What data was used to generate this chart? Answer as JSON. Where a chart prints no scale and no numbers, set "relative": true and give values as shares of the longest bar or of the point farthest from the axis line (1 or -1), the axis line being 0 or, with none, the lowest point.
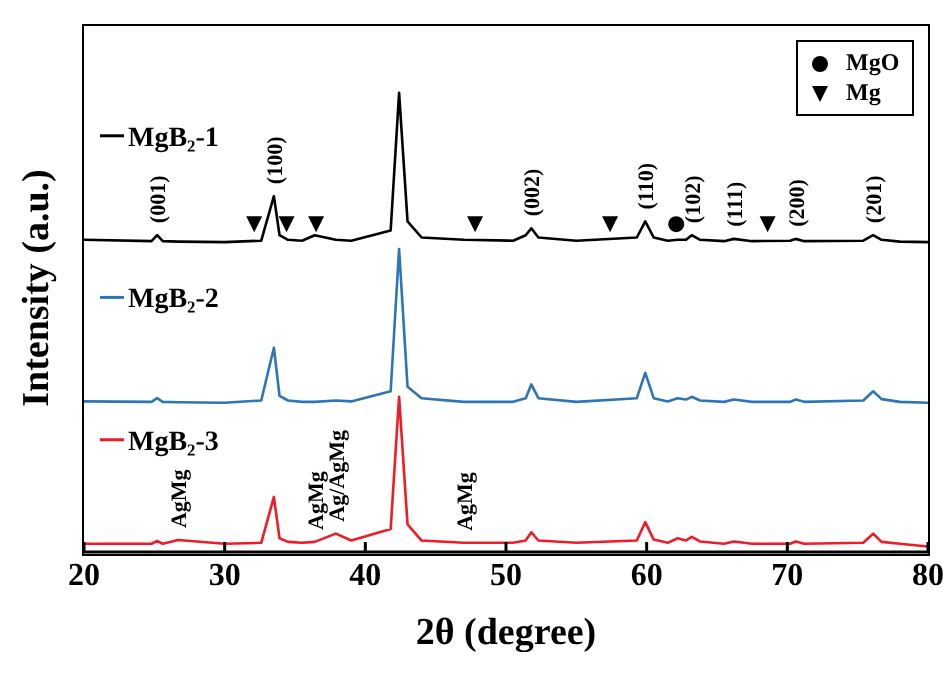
{
  "chart_data": {
    "type": "line",
    "relative": true,
    "xlabel": "2θ (degree)",
    "ylabel": "Intensity (a.u.)",
    "xlim": [
      20,
      80
    ],
    "xticks": [
      20,
      30,
      40,
      50,
      60,
      70,
      80
    ],
    "legend": "top right",
    "x": [
      20,
      24.8,
      25.2,
      25.6,
      26.7,
      30,
      32.6,
      33.5,
      33.9,
      34.5,
      35.5,
      36.4,
      37.9,
      39,
      41.8,
      42.4,
      43,
      44,
      47,
      50.5,
      51.4,
      51.8,
      52.3,
      55,
      59.3,
      59.9,
      60.5,
      61.5,
      62.2,
      62.8,
      63.2,
      63.8,
      65.5,
      66.2,
      67.5,
      70.2,
      70.6,
      71.2,
      75.4,
      76.1,
      76.7,
      78,
      80
    ],
    "series": [
      {
        "name": "MgB₂-1",
        "color": "#000000",
        "values": [
          0.68,
          0.677,
          0.69,
          0.677,
          0.676,
          0.675,
          0.678,
          0.775,
          0.69,
          0.68,
          0.678,
          0.69,
          0.68,
          0.678,
          0.7,
          1,
          0.72,
          0.685,
          0.68,
          0.678,
          0.69,
          0.705,
          0.685,
          0.678,
          0.685,
          0.72,
          0.685,
          0.678,
          0.68,
          0.68,
          0.69,
          0.68,
          0.677,
          0.682,
          0.677,
          0.678,
          0.682,
          0.677,
          0.678,
          0.69,
          0.68,
          0.676,
          0.675
        ]
      },
      {
        "name": "MgB₂-2",
        "color": "#2e75b6",
        "values": [
          0.328,
          0.327,
          0.335,
          0.327,
          0.326,
          0.325,
          0.33,
          0.445,
          0.34,
          0.33,
          0.327,
          0.327,
          0.33,
          0.328,
          0.35,
          0.66,
          0.36,
          0.335,
          0.327,
          0.327,
          0.335,
          0.365,
          0.335,
          0.327,
          0.335,
          0.39,
          0.335,
          0.328,
          0.335,
          0.332,
          0.338,
          0.33,
          0.327,
          0.332,
          0.327,
          0.327,
          0.332,
          0.327,
          0.33,
          0.35,
          0.333,
          0.327,
          0.325
        ]
      },
      {
        "name": "MgB₂-3",
        "color": "#ee1c25",
        "values": [
          0.018,
          0.018,
          0.024,
          0.018,
          0.026,
          0.018,
          0.02,
          0.12,
          0.03,
          0.022,
          0.02,
          0.022,
          0.04,
          0.025,
          0.05,
          0.338,
          0.06,
          0.025,
          0.02,
          0.02,
          0.025,
          0.043,
          0.025,
          0.02,
          0.025,
          0.065,
          0.027,
          0.02,
          0.03,
          0.025,
          0.033,
          0.023,
          0.018,
          0.023,
          0.018,
          0.018,
          0.023,
          0.018,
          0.02,
          0.04,
          0.022,
          0.018,
          0.012
        ]
      },
      {
        "name": "MgO",
        "type": "scatter",
        "marker": "circle",
        "color": "#000000",
        "x": [
          62.1
        ],
        "values": [
          0.714
        ]
      },
      {
        "name": "Mg",
        "type": "scatter",
        "marker": "triangle",
        "color": "#000000",
        "x": [
          32.1,
          34.4,
          36.5,
          47.8,
          57.4,
          68.6
        ],
        "values": [
          0.714,
          0.714,
          0.714,
          0.714,
          0.714,
          0.714
        ]
      }
    ],
    "annotations": [
      {
        "text": "(001)",
        "x": 25.2,
        "y": 0.69
      },
      {
        "text": "(100)",
        "x": 33.5,
        "y": 0.775
      },
      {
        "text": "(002)",
        "x": 51.8,
        "y": 0.705
      },
      {
        "text": "(110)",
        "x": 59.9,
        "y": 0.72
      },
      {
        "text": "(102)",
        "x": 63.2,
        "y": 0.69
      },
      {
        "text": "(111)",
        "x": 66.2,
        "y": 0.682
      },
      {
        "text": "(200)",
        "x": 70.6,
        "y": 0.682
      },
      {
        "text": "(201)",
        "x": 76.1,
        "y": 0.69
      },
      {
        "text": "AgMg",
        "x": 26.7,
        "y": 0.026
      },
      {
        "text": "AgMg",
        "x": 36.4,
        "y": 0.022
      },
      {
        "text": "Ag/AgMg",
        "x": 37.9,
        "y": 0.04
      },
      {
        "text": "AgMg",
        "x": 47,
        "y": 0.02
      }
    ]
  }
}
